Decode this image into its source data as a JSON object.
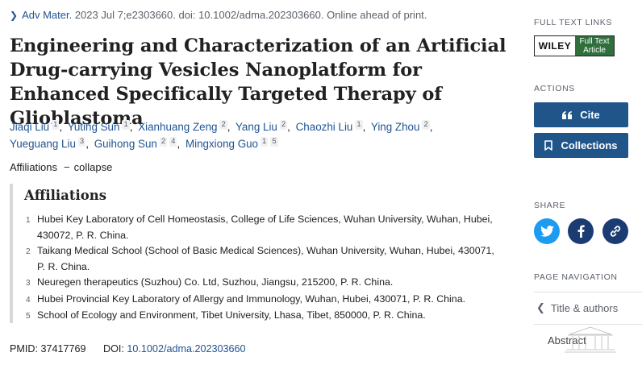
{
  "citation": {
    "journal": "Adv Mater.",
    "details": "2023 Jul 7;e2303660. doi: 10.1002/adma.202303660. Online ahead of print."
  },
  "title": "Engineering and Characterization of an Artificial Drug-carrying Vesicles Nanoplatform for Enhanced Specifically Targeted Therapy of Glioblastoma",
  "authors": [
    {
      "name": "Jiaqi Liu",
      "aff": "1"
    },
    {
      "name": "Yuting Sun",
      "aff": "1"
    },
    {
      "name": "Xianhuang Zeng",
      "aff": "2"
    },
    {
      "name": "Yang Liu",
      "aff": "2"
    },
    {
      "name": "Chaozhi Liu",
      "aff": "1"
    },
    {
      "name": "Ying Zhou",
      "aff": "2"
    },
    {
      "name": "Yueguang Liu",
      "aff": "3"
    },
    {
      "name": "Guihong Sun",
      "aff": "2 4"
    },
    {
      "name": "Mingxiong Guo",
      "aff": "1 5"
    }
  ],
  "affiliations_toggle": {
    "label": "Affiliations",
    "action": "collapse"
  },
  "affiliations": {
    "heading": "Affiliations",
    "items": [
      {
        "num": "1",
        "text": "Hubei Key Laboratory of Cell Homeostasis, College of Life Sciences, Wuhan University, Wuhan, Hubei, 430072, P. R. China."
      },
      {
        "num": "2",
        "text": "Taikang Medical School (School of Basic Medical Sciences), Wuhan University, Wuhan, Hubei, 430071, P. R. China."
      },
      {
        "num": "3",
        "text": "Neuregen therapeutics (Suzhou) Co. Ltd, Suzhou, Jiangsu, 215200, P. R. China."
      },
      {
        "num": "4",
        "text": "Hubei Provincial Key Laboratory of Allergy and Immunology, Wuhan, Hubei, 430071, P. R. China."
      },
      {
        "num": "5",
        "text": "School of Ecology and Environment, Tibet University, Lhasa, Tibet, 850000, P. R. China."
      }
    ]
  },
  "ids": {
    "pmid_label": "PMID:",
    "pmid": "37417769",
    "doi_label": "DOI:",
    "doi": "10.1002/adma.202303660"
  },
  "sidebar": {
    "full_text_links_label": "FULL TEXT LINKS",
    "wiley": {
      "brand": "WILEY",
      "line1": "Full Text",
      "line2": "Article"
    },
    "actions_label": "ACTIONS",
    "cite_label": "Cite",
    "collections_label": "Collections",
    "share_label": "SHARE",
    "share_colors": {
      "twitter": "#1d9bf0",
      "facebook": "#1b3b73",
      "link": "#1b3b73"
    },
    "page_nav_label": "PAGE NAVIGATION",
    "nav_items": [
      "Title & authors",
      "Abstract"
    ]
  },
  "colors": {
    "link": "#205493",
    "button": "#20558a",
    "muted": "#5b616b"
  }
}
